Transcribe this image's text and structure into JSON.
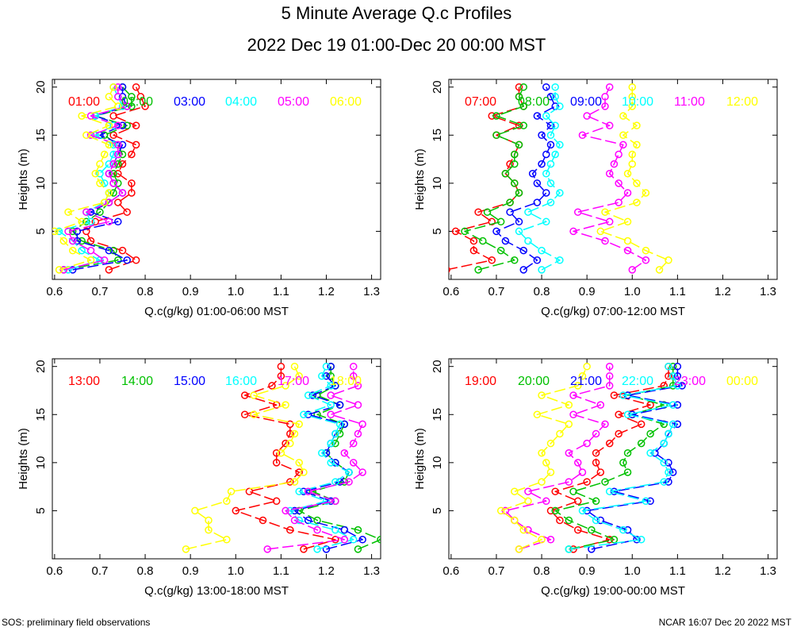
{
  "title": "5 Minute Average Q.c Profiles",
  "subtitle": "2022 Dec 19 01:00-Dec 20 00:00 MST",
  "footer_left": "SOS: preliminary field observations",
  "footer_right": "NCAR 16:07 Dec 20 2022 MST",
  "colors": [
    "#ff0000",
    "#00c000",
    "#0000ff",
    "#00ffff",
    "#ff00ff",
    "#ffff00"
  ],
  "chart_data": [
    {
      "type": "line",
      "xlabel": "Q.c(g/kg) 01:00-06:00 MST",
      "ylabel": "Heights (m)",
      "xlim": [
        0.595,
        1.32
      ],
      "ylim": [
        0,
        20.8
      ],
      "xticks": [
        "0.6",
        "0.7",
        "0.8",
        "0.9",
        "1.0",
        "1.1",
        "1.2",
        "1.3"
      ],
      "yticks": [
        "5",
        "10",
        "15",
        "20"
      ],
      "heights": [
        1,
        2,
        3,
        4,
        5,
        6,
        7,
        8,
        9,
        10,
        11,
        12,
        13,
        14,
        15,
        16,
        17,
        18,
        19,
        20
      ],
      "series": [
        {
          "name": "01:00",
          "values": [
            0.72,
            0.78,
            0.75,
            0.68,
            0.67,
            0.69,
            0.76,
            0.74,
            0.77,
            0.77,
            0.74,
            0.75,
            0.77,
            0.78,
            0.73,
            0.78,
            0.73,
            0.8,
            0.79,
            0.78
          ]
        },
        {
          "name": "02:00",
          "values": [
            0.62,
            0.74,
            0.73,
            0.66,
            0.64,
            0.67,
            0.7,
            0.72,
            0.73,
            0.74,
            0.73,
            0.74,
            0.75,
            0.74,
            0.71,
            0.76,
            0.69,
            0.77,
            0.77,
            0.75
          ]
        },
        {
          "name": "03:00",
          "values": [
            0.64,
            0.76,
            0.72,
            0.65,
            0.65,
            0.74,
            0.68,
            0.72,
            0.75,
            0.73,
            0.72,
            0.73,
            0.74,
            0.75,
            0.7,
            0.75,
            0.69,
            0.76,
            0.75,
            0.75
          ]
        },
        {
          "name": "04:00",
          "values": [
            0.63,
            0.7,
            0.66,
            0.64,
            0.61,
            0.68,
            0.67,
            0.71,
            0.72,
            0.71,
            0.7,
            0.72,
            0.73,
            0.73,
            0.69,
            0.73,
            0.69,
            0.75,
            0.74,
            0.73
          ]
        },
        {
          "name": "05:00",
          "values": [
            0.62,
            0.71,
            0.68,
            0.64,
            0.63,
            0.72,
            0.67,
            0.72,
            0.75,
            0.73,
            0.72,
            0.73,
            0.74,
            0.74,
            0.68,
            0.74,
            0.68,
            0.76,
            0.74,
            0.74
          ]
        },
        {
          "name": "06:00",
          "values": [
            0.61,
            0.68,
            0.64,
            0.62,
            0.6,
            0.66,
            0.63,
            0.71,
            0.72,
            0.7,
            0.69,
            0.7,
            0.71,
            0.72,
            0.67,
            0.72,
            0.66,
            0.74,
            0.72,
            0.73
          ]
        }
      ]
    },
    {
      "type": "line",
      "xlabel": "Q.c(g/kg) 07:00-12:00 MST",
      "ylabel": "Heights (m)",
      "xlim": [
        0.595,
        1.32
      ],
      "ylim": [
        0,
        20.8
      ],
      "xticks": [
        "0.6",
        "0.7",
        "0.8",
        "0.9",
        "1.0",
        "1.1",
        "1.2",
        "1.3"
      ],
      "yticks": [
        "5",
        "10",
        "15",
        "20"
      ],
      "heights": [
        1,
        2,
        3,
        4,
        5,
        6,
        7,
        8,
        9,
        10,
        11,
        12,
        13,
        14,
        15,
        16,
        17,
        18,
        19,
        20
      ],
      "series": [
        {
          "name": "07:00",
          "values": [
            0.59,
            0.69,
            0.65,
            0.65,
            0.61,
            0.69,
            0.66,
            0.73,
            0.75,
            0.74,
            0.72,
            0.73,
            0.74,
            0.75,
            0.7,
            0.75,
            0.69,
            0.76,
            0.75,
            0.75
          ]
        },
        {
          "name": "08:00",
          "values": [
            0.66,
            0.74,
            0.71,
            0.67,
            0.63,
            0.71,
            0.68,
            0.73,
            0.75,
            0.74,
            0.72,
            0.74,
            0.74,
            0.75,
            0.7,
            0.76,
            0.7,
            0.76,
            0.75,
            0.76
          ]
        },
        {
          "name": "09:00",
          "values": [
            0.76,
            0.79,
            0.76,
            0.72,
            0.7,
            0.75,
            0.73,
            0.79,
            0.81,
            0.79,
            0.78,
            0.8,
            0.81,
            0.82,
            0.8,
            0.82,
            0.79,
            0.83,
            0.82,
            0.81
          ]
        },
        {
          "name": "10:00",
          "values": [
            0.8,
            0.84,
            0.8,
            0.77,
            0.75,
            0.81,
            0.77,
            0.82,
            0.84,
            0.82,
            0.81,
            0.82,
            0.83,
            0.84,
            0.82,
            0.83,
            0.81,
            0.84,
            0.83,
            0.83
          ]
        },
        {
          "name": "11:00",
          "values": [
            1.0,
            1.03,
            0.99,
            0.94,
            0.87,
            0.95,
            0.88,
            0.97,
            0.99,
            0.97,
            0.95,
            0.96,
            0.97,
            0.98,
            0.89,
            0.95,
            0.9,
            0.94,
            0.94,
            0.95
          ]
        },
        {
          "name": "12:00",
          "values": [
            1.06,
            1.08,
            1.03,
            0.99,
            0.93,
            0.99,
            0.94,
            1.01,
            1.03,
            1.01,
            0.99,
            1.0,
            1.0,
            1.01,
            0.98,
            1.01,
            0.98,
            1.0,
            1.0,
            1.0
          ]
        }
      ]
    },
    {
      "type": "line",
      "xlabel": "Q.c(g/kg) 13:00-18:00 MST",
      "ylabel": "Heights (m)",
      "xlim": [
        0.595,
        1.32
      ],
      "ylim": [
        0,
        20.8
      ],
      "xticks": [
        "0.6",
        "0.7",
        "0.8",
        "0.9",
        "1.0",
        "1.1",
        "1.2",
        "1.3"
      ],
      "yticks": [
        "5",
        "10",
        "15",
        "20"
      ],
      "heights": [
        1,
        2,
        3,
        4,
        5,
        6,
        7,
        8,
        9,
        10,
        11,
        12,
        13,
        14,
        15,
        16,
        17,
        18,
        19,
        20
      ],
      "series": [
        {
          "name": "13:00",
          "values": [
            1.15,
            1.22,
            1.12,
            1.06,
            1.0,
            1.09,
            1.03,
            1.12,
            1.14,
            1.09,
            1.09,
            1.11,
            1.12,
            1.12,
            1.02,
            1.09,
            1.02,
            1.08,
            1.1,
            1.1
          ]
        },
        {
          "name": "14:00",
          "values": [
            1.27,
            1.32,
            1.27,
            1.18,
            1.14,
            1.22,
            1.17,
            1.24,
            1.25,
            1.22,
            1.2,
            1.22,
            1.23,
            1.24,
            1.18,
            1.23,
            1.18,
            1.22,
            1.21,
            1.21
          ]
        },
        {
          "name": "15:00",
          "values": [
            1.2,
            1.28,
            1.24,
            1.16,
            1.13,
            1.21,
            1.15,
            1.23,
            1.25,
            1.22,
            1.2,
            1.21,
            1.22,
            1.24,
            1.16,
            1.23,
            1.17,
            1.22,
            1.2,
            1.21
          ]
        },
        {
          "name": "16:00",
          "values": [
            1.18,
            1.26,
            1.22,
            1.14,
            1.12,
            1.2,
            1.14,
            1.22,
            1.25,
            1.21,
            1.19,
            1.21,
            1.22,
            1.23,
            1.15,
            1.21,
            1.16,
            1.21,
            1.19,
            1.2
          ]
        },
        {
          "name": "17:00",
          "values": [
            1.07,
            1.24,
            1.18,
            1.13,
            1.11,
            1.22,
            1.16,
            1.25,
            1.28,
            1.26,
            1.24,
            1.26,
            1.27,
            1.28,
            1.21,
            1.27,
            1.21,
            1.27,
            1.26,
            1.26
          ]
        },
        {
          "name": "18:00",
          "values": [
            0.89,
            0.98,
            0.94,
            0.94,
            0.91,
            0.98,
            0.99,
            1.13,
            1.15,
            1.14,
            1.1,
            1.12,
            1.13,
            1.14,
            1.04,
            1.11,
            1.04,
            1.11,
            1.14,
            1.13
          ]
        }
      ]
    },
    {
      "type": "line",
      "xlabel": "Q.c(g/kg) 19:00-00:00 MST",
      "ylabel": "Heights (m)",
      "xlim": [
        0.595,
        1.32
      ],
      "ylim": [
        0,
        20.8
      ],
      "xticks": [
        "0.6",
        "0.7",
        "0.8",
        "0.9",
        "1.0",
        "1.1",
        "1.2",
        "1.3"
      ],
      "yticks": [
        "5",
        "10",
        "15",
        "20"
      ],
      "heights": [
        1,
        2,
        3,
        4,
        5,
        6,
        7,
        8,
        9,
        10,
        11,
        12,
        13,
        14,
        15,
        16,
        17,
        18,
        19,
        20
      ],
      "series": [
        {
          "name": "19:00",
          "values": [
            0.87,
            0.95,
            0.88,
            0.84,
            0.82,
            0.88,
            0.83,
            0.9,
            0.93,
            0.92,
            0.92,
            0.95,
            0.97,
            1.02,
            0.97,
            1.04,
            0.96,
            1.07,
            1.08,
            1.08
          ]
        },
        {
          "name": "20:00",
          "values": [
            0.86,
            0.96,
            0.91,
            0.86,
            0.83,
            0.92,
            0.87,
            0.94,
            0.99,
            0.98,
            0.99,
            1.02,
            1.04,
            1.07,
            1.0,
            1.07,
            0.99,
            1.09,
            1.09,
            1.09
          ]
        },
        {
          "name": "21:00",
          "values": [
            0.91,
            1.01,
            0.99,
            0.93,
            0.9,
            1.04,
            0.96,
            1.08,
            1.09,
            1.08,
            1.05,
            1.07,
            1.08,
            1.1,
            1.0,
            1.1,
            0.99,
            1.11,
            1.1,
            1.1
          ]
        },
        {
          "name": "22:00",
          "values": [
            0.86,
            1.02,
            0.98,
            0.92,
            0.89,
            1.03,
            0.95,
            1.07,
            1.08,
            1.07,
            1.04,
            1.07,
            1.08,
            1.09,
            0.99,
            1.09,
            0.98,
            1.1,
            1.09,
            1.08
          ]
        },
        {
          "name": "23:00",
          "values": [
            0.75,
            0.82,
            0.77,
            0.74,
            0.72,
            0.81,
            0.77,
            0.86,
            0.89,
            0.88,
            0.86,
            0.9,
            0.92,
            0.94,
            0.87,
            0.93,
            0.87,
            0.95,
            0.95,
            0.95
          ]
        },
        {
          "name": "00:00",
          "values": [
            0.75,
            0.8,
            0.76,
            0.74,
            0.71,
            0.77,
            0.74,
            0.8,
            0.82,
            0.81,
            0.8,
            0.82,
            0.84,
            0.86,
            0.79,
            0.86,
            0.8,
            0.88,
            0.89,
            0.9
          ]
        }
      ]
    }
  ]
}
